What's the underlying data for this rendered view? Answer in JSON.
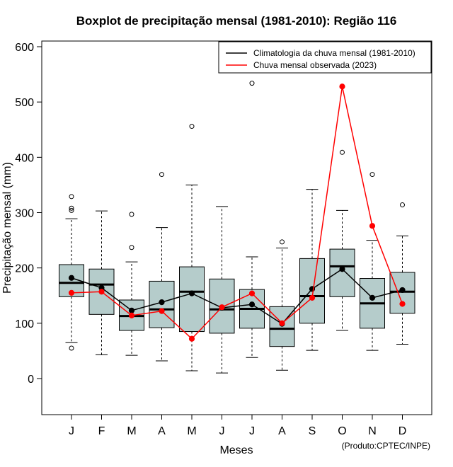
{
  "chart_data": {
    "type": "boxplot",
    "title": "Boxplot de precipitação mensal (1981-2010): Região 116",
    "xlabel": "Meses",
    "ylabel": "Precipitação mensal (mm)",
    "credit": "(Produto:CPTEC/INPE)",
    "ylim": [
      -65,
      610
    ],
    "yticks": [
      0,
      100,
      200,
      300,
      400,
      500,
      600
    ],
    "categories": [
      "J",
      "F",
      "M",
      "A",
      "M",
      "J",
      "J",
      "A",
      "S",
      "O",
      "N",
      "D"
    ],
    "box_fill": "#b5cccb",
    "boxes": [
      {
        "whisker_low": 65,
        "q1": 148,
        "median": 173,
        "q3": 206,
        "whisker_high": 289,
        "outliers": [
          55,
          304,
          308,
          329
        ]
      },
      {
        "whisker_low": 43,
        "q1": 116,
        "median": 170,
        "q3": 198,
        "whisker_high": 303,
        "outliers": []
      },
      {
        "whisker_low": 42,
        "q1": 87,
        "median": 113,
        "q3": 142,
        "whisker_high": 211,
        "outliers": [
          237,
          297
        ]
      },
      {
        "whisker_low": 32,
        "q1": 92,
        "median": 125,
        "q3": 176,
        "whisker_high": 273,
        "outliers": [
          369
        ]
      },
      {
        "whisker_low": 14,
        "q1": 85,
        "median": 157,
        "q3": 202,
        "whisker_high": 350,
        "outliers": [
          456
        ]
      },
      {
        "whisker_low": 10,
        "q1": 82,
        "median": 125,
        "q3": 180,
        "whisker_high": 311,
        "outliers": []
      },
      {
        "whisker_low": 38,
        "q1": 91,
        "median": 126,
        "q3": 161,
        "whisker_high": 220,
        "outliers": [
          534
        ]
      },
      {
        "whisker_low": 15,
        "q1": 58,
        "median": 90,
        "q3": 130,
        "whisker_high": 236,
        "outliers": [
          247
        ]
      },
      {
        "whisker_low": 51,
        "q1": 100,
        "median": 149,
        "q3": 217,
        "whisker_high": 342,
        "outliers": []
      },
      {
        "whisker_low": 87,
        "q1": 148,
        "median": 203,
        "q3": 234,
        "whisker_high": 304,
        "outliers": [
          409
        ]
      },
      {
        "whisker_low": 51,
        "q1": 91,
        "median": 136,
        "q3": 181,
        "whisker_high": 250,
        "outliers": [
          369
        ]
      },
      {
        "whisker_low": 62,
        "q1": 118,
        "median": 157,
        "q3": 192,
        "whisker_high": 258,
        "outliers": [
          314
        ]
      }
    ],
    "series": [
      {
        "name": "Climatologia da chuva mensal (1981-2010)",
        "color": "#000000",
        "values": [
          182,
          164,
          123,
          138,
          154,
          128,
          134,
          99,
          162,
          198,
          146,
          160
        ]
      },
      {
        "name": "Chuva mensal observada (2023)",
        "color": "#ff0000",
        "values": [
          155,
          157,
          114,
          122,
          72,
          129,
          154,
          100,
          146,
          528,
          276,
          135
        ]
      }
    ]
  }
}
